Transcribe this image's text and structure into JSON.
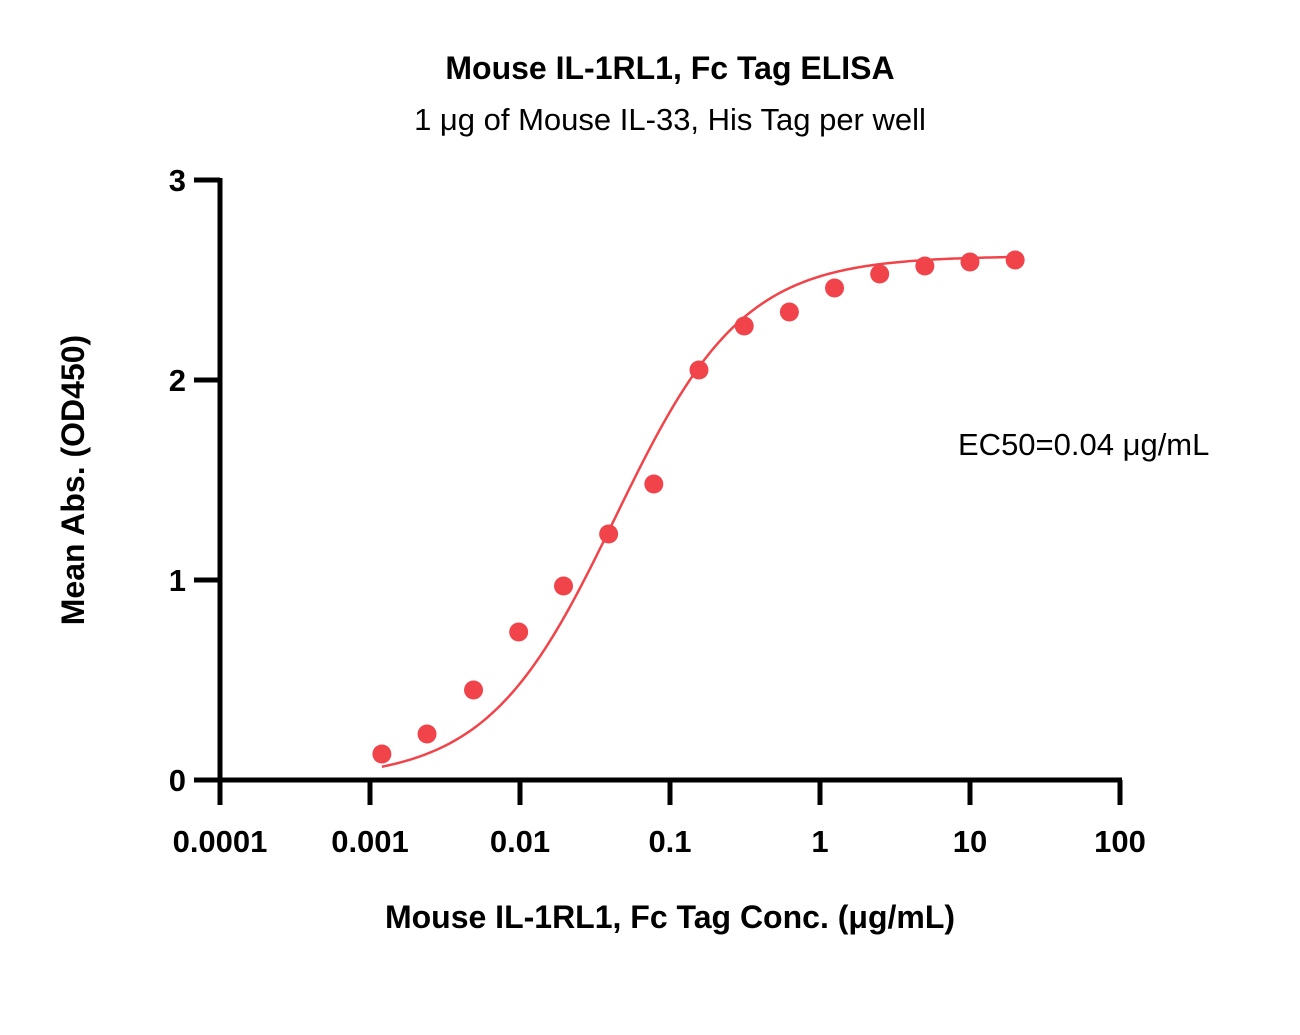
{
  "chart_data": {
    "type": "scatter",
    "title": "Mouse IL-1RL1, Fc Tag ELISA",
    "subtitle": "1 μg of Mouse IL-33, His Tag per well",
    "xlabel": "Mouse IL-1RL1, Fc Tag Conc. (μg/mL)",
    "ylabel": "Mean Abs. (OD450)",
    "x_scale": "log",
    "xlim": [
      0.0001,
      100
    ],
    "ylim": [
      0,
      3
    ],
    "x_ticks": [
      "0.0001",
      "0.001",
      "0.01",
      "0.1",
      "1",
      "10",
      "100"
    ],
    "y_ticks": [
      "0",
      "1",
      "2",
      "3"
    ],
    "grid": false,
    "color": "#f0444a",
    "annotation": "EC50=0.04 μg/mL",
    "series": [
      {
        "x": [
          0.0012,
          0.0024,
          0.0049,
          0.0098,
          0.0195,
          0.039,
          0.078,
          0.156,
          0.3125,
          0.625,
          1.25,
          2.5,
          5,
          10,
          20
        ],
        "y": [
          0.13,
          0.23,
          0.45,
          0.74,
          0.97,
          1.23,
          1.48,
          2.05,
          2.27,
          2.34,
          2.46,
          2.53,
          2.57,
          2.59,
          2.6
        ]
      }
    ]
  }
}
